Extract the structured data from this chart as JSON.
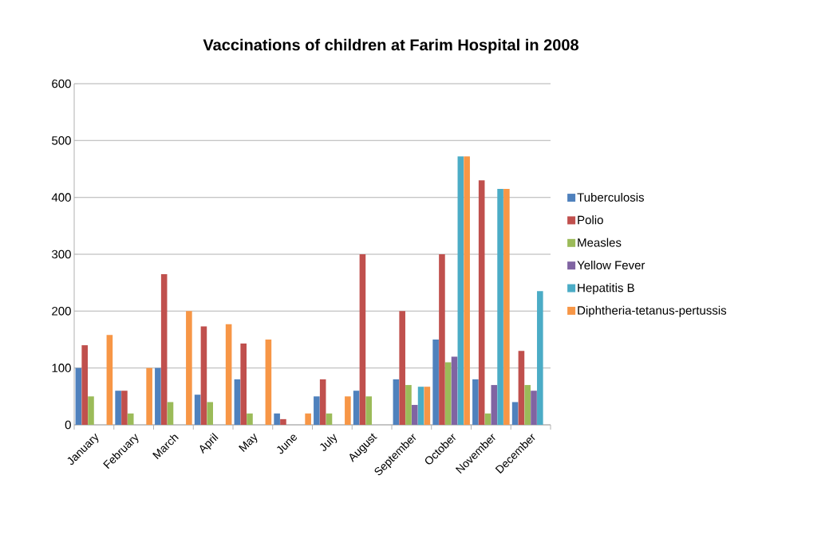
{
  "chart_data": {
    "type": "bar",
    "title": "Vaccinations of children at Farim Hospital in 2008",
    "categories": [
      "January",
      "February",
      "March",
      "April",
      "May",
      "June",
      "July",
      "August",
      "September",
      "October",
      "November",
      "December"
    ],
    "series": [
      {
        "name": "Tuberculosis",
        "color": "#4f81bd",
        "values": [
          100,
          60,
          100,
          53,
          80,
          20,
          50,
          60,
          80,
          150,
          80,
          40
        ]
      },
      {
        "name": "Polio",
        "color": "#c0504d",
        "values": [
          140,
          60,
          265,
          173,
          143,
          10,
          80,
          300,
          200,
          300,
          430,
          130
        ]
      },
      {
        "name": "Measles",
        "color": "#9bbb59",
        "values": [
          50,
          20,
          40,
          40,
          20,
          0,
          20,
          50,
          70,
          110,
          20,
          70
        ]
      },
      {
        "name": "Yellow Fever",
        "color": "#8064a2",
        "values": [
          0,
          0,
          0,
          0,
          0,
          0,
          0,
          0,
          35,
          120,
          70,
          60
        ]
      },
      {
        "name": "Hepatitis B",
        "color": "#4bacc6",
        "values": [
          0,
          0,
          0,
          0,
          0,
          0,
          0,
          0,
          67,
          472,
          415,
          235
        ]
      },
      {
        "name": "Diphtheria-tetanus-pertussis",
        "color": "#f79646",
        "values": [
          158,
          100,
          200,
          177,
          150,
          20,
          50,
          0,
          67,
          472,
          415,
          0
        ]
      }
    ],
    "ylim": [
      0,
      600
    ],
    "yticks": [
      0,
      100,
      200,
      300,
      400,
      500,
      600
    ],
    "grid": "y",
    "legend": "right"
  }
}
